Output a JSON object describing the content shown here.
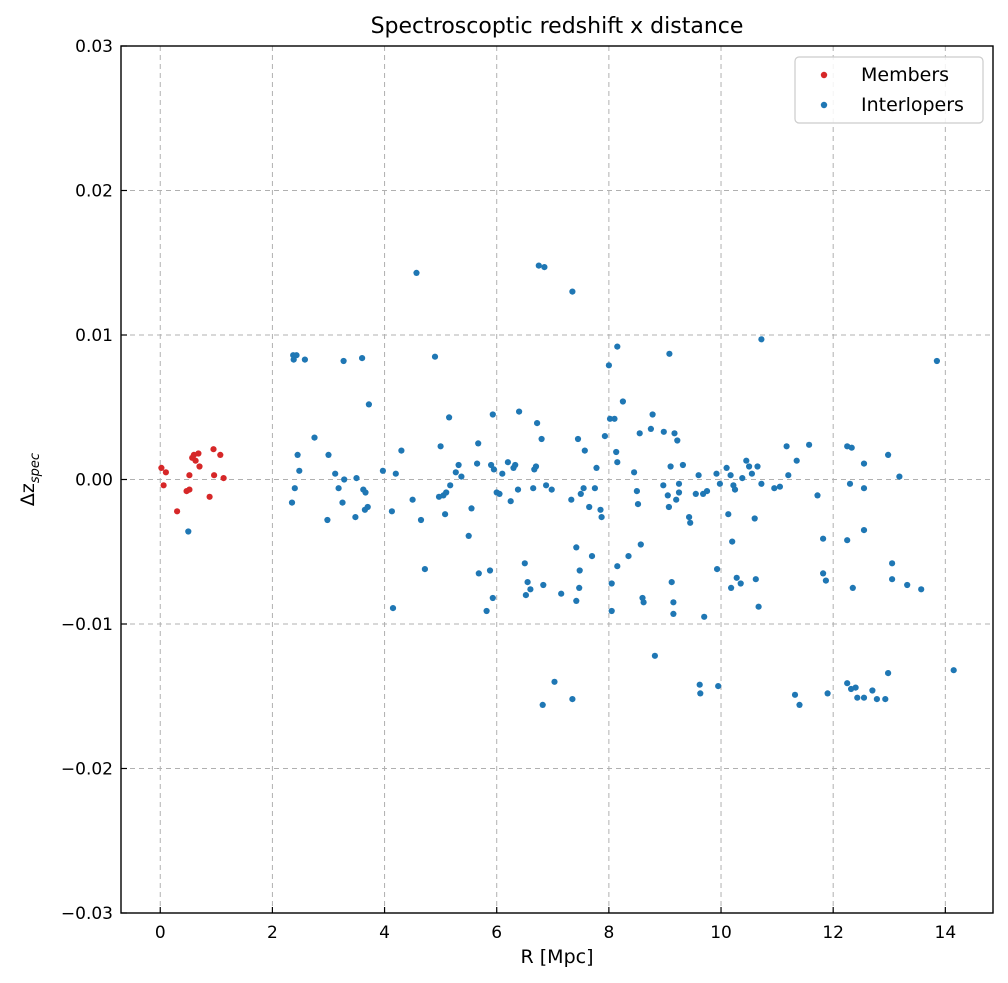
{
  "chart_data": {
    "type": "scatter",
    "title": "Spectroscoptic redshift x distance",
    "xlabel": "R [Mpc]",
    "ylabel": "Δz",
    "ylabel_subscript": "spec",
    "xlim": [
      -0.7,
      14.85
    ],
    "ylim": [
      -0.03,
      0.03
    ],
    "xticks": [
      0,
      2,
      4,
      6,
      8,
      10,
      12,
      14
    ],
    "xtick_labels": [
      "0",
      "2",
      "4",
      "6",
      "8",
      "10",
      "12",
      "14"
    ],
    "yticks": [
      -0.03,
      -0.02,
      -0.01,
      0.0,
      0.01,
      0.02,
      0.03
    ],
    "ytick_labels": [
      "−0.03",
      "−0.02",
      "−0.01",
      "0.00",
      "0.01",
      "0.02",
      "0.03"
    ],
    "grid": true,
    "legend_position": "top-right",
    "series": [
      {
        "name": "Members",
        "color": "#d62728",
        "points": [
          [
            0.02,
            0.0008
          ],
          [
            0.06,
            -0.0004
          ],
          [
            0.1,
            0.0005
          ],
          [
            0.3,
            -0.0022
          ],
          [
            0.47,
            -0.0008
          ],
          [
            0.52,
            -0.0007
          ],
          [
            0.52,
            0.0003
          ],
          [
            0.57,
            0.0015
          ],
          [
            0.6,
            0.0017
          ],
          [
            0.63,
            0.0013
          ],
          [
            0.68,
            0.0018
          ],
          [
            0.7,
            0.0009
          ],
          [
            0.88,
            -0.0012
          ],
          [
            0.95,
            0.0021
          ],
          [
            0.96,
            0.0003
          ],
          [
            1.07,
            0.0017
          ],
          [
            1.13,
            0.0001
          ]
        ]
      },
      {
        "name": "Interlopers",
        "color": "#1f77b4",
        "points": [
          [
            0.5,
            -0.0036
          ],
          [
            2.35,
            -0.0016
          ],
          [
            2.37,
            0.0086
          ],
          [
            2.38,
            0.0083
          ],
          [
            2.4,
            -0.0006
          ],
          [
            2.43,
            0.0086
          ],
          [
            2.45,
            0.0017
          ],
          [
            2.48,
            0.0006
          ],
          [
            2.58,
            0.0083
          ],
          [
            2.75,
            0.0029
          ],
          [
            2.98,
            -0.0028
          ],
          [
            3.0,
            0.0017
          ],
          [
            3.12,
            0.0004
          ],
          [
            3.18,
            -0.0006
          ],
          [
            3.25,
            -0.0016
          ],
          [
            3.27,
            0.0082
          ],
          [
            3.28,
            0.0
          ],
          [
            3.48,
            -0.0026
          ],
          [
            3.5,
            0.0001
          ],
          [
            3.6,
            0.0084
          ],
          [
            3.62,
            -0.0007
          ],
          [
            3.65,
            -0.0021
          ],
          [
            3.66,
            -0.0009
          ],
          [
            3.7,
            -0.0019
          ],
          [
            3.72,
            0.0052
          ],
          [
            3.97,
            0.0006
          ],
          [
            4.13,
            -0.0022
          ],
          [
            4.15,
            -0.0089
          ],
          [
            4.2,
            0.0004
          ],
          [
            4.3,
            0.002
          ],
          [
            4.5,
            -0.0014
          ],
          [
            4.57,
            0.0143
          ],
          [
            4.65,
            -0.0028
          ],
          [
            4.72,
            -0.0062
          ],
          [
            4.9,
            0.0085
          ],
          [
            4.97,
            -0.0012
          ],
          [
            5.0,
            0.0023
          ],
          [
            5.05,
            -0.0011
          ],
          [
            5.08,
            -0.0024
          ],
          [
            5.1,
            -0.0009
          ],
          [
            5.15,
            0.0043
          ],
          [
            5.17,
            -0.0004
          ],
          [
            5.27,
            0.0005
          ],
          [
            5.32,
            0.001
          ],
          [
            5.37,
            0.0002
          ],
          [
            5.5,
            -0.0039
          ],
          [
            5.55,
            -0.002
          ],
          [
            5.65,
            0.0011
          ],
          [
            5.67,
            0.0025
          ],
          [
            5.68,
            -0.0065
          ],
          [
            5.82,
            -0.0091
          ],
          [
            5.88,
            -0.0063
          ],
          [
            5.9,
            0.001
          ],
          [
            5.93,
            0.0045
          ],
          [
            5.93,
            -0.0082
          ],
          [
            5.95,
            0.0007
          ],
          [
            6.0,
            -0.0009
          ],
          [
            6.05,
            -0.001
          ],
          [
            6.1,
            0.0004
          ],
          [
            6.2,
            0.0012
          ],
          [
            6.25,
            -0.0015
          ],
          [
            6.3,
            0.0008
          ],
          [
            6.33,
            0.001
          ],
          [
            6.38,
            -0.0007
          ],
          [
            6.4,
            0.0047
          ],
          [
            6.5,
            -0.0058
          ],
          [
            6.52,
            -0.008
          ],
          [
            6.55,
            -0.0071
          ],
          [
            6.6,
            -0.0076
          ],
          [
            6.65,
            -0.0006
          ],
          [
            6.67,
            0.0007
          ],
          [
            6.7,
            0.0009
          ],
          [
            6.72,
            0.0039
          ],
          [
            6.75,
            0.0148
          ],
          [
            6.8,
            0.0028
          ],
          [
            6.82,
            -0.0156
          ],
          [
            6.83,
            -0.0073
          ],
          [
            6.85,
            0.0147
          ],
          [
            6.88,
            -0.0004
          ],
          [
            6.98,
            -0.0007
          ],
          [
            7.03,
            -0.014
          ],
          [
            7.15,
            -0.0079
          ],
          [
            7.33,
            -0.0014
          ],
          [
            7.35,
            0.013
          ],
          [
            7.35,
            -0.0152
          ],
          [
            7.42,
            -0.0084
          ],
          [
            7.42,
            -0.0047
          ],
          [
            7.45,
            0.0028
          ],
          [
            7.47,
            -0.0075
          ],
          [
            7.48,
            -0.0063
          ],
          [
            7.5,
            -0.001
          ],
          [
            7.55,
            -0.0006
          ],
          [
            7.57,
            0.002
          ],
          [
            7.65,
            -0.0019
          ],
          [
            7.7,
            -0.0053
          ],
          [
            7.75,
            -0.0006
          ],
          [
            7.78,
            0.0008
          ],
          [
            7.85,
            -0.0021
          ],
          [
            7.87,
            -0.0026
          ],
          [
            7.93,
            0.003
          ],
          [
            8.0,
            0.0079
          ],
          [
            8.02,
            0.0042
          ],
          [
            8.05,
            -0.0072
          ],
          [
            8.05,
            -0.0091
          ],
          [
            8.1,
            0.0042
          ],
          [
            8.13,
            0.0019
          ],
          [
            8.15,
            0.0092
          ],
          [
            8.15,
            -0.006
          ],
          [
            8.15,
            0.0012
          ],
          [
            8.25,
            0.0054
          ],
          [
            8.35,
            -0.0053
          ],
          [
            8.45,
            0.0005
          ],
          [
            8.5,
            -0.0008
          ],
          [
            8.52,
            -0.0017
          ],
          [
            8.55,
            0.0032
          ],
          [
            8.57,
            -0.0045
          ],
          [
            8.6,
            -0.0082
          ],
          [
            8.62,
            -0.0085
          ],
          [
            8.75,
            0.0035
          ],
          [
            8.78,
            0.0045
          ],
          [
            8.82,
            -0.0122
          ],
          [
            8.97,
            -0.0004
          ],
          [
            8.98,
            0.0033
          ],
          [
            9.05,
            -0.0011
          ],
          [
            9.07,
            -0.0019
          ],
          [
            9.08,
            0.0087
          ],
          [
            9.1,
            0.0009
          ],
          [
            9.12,
            -0.0071
          ],
          [
            9.15,
            -0.0093
          ],
          [
            9.15,
            -0.0085
          ],
          [
            9.17,
            0.0032
          ],
          [
            9.2,
            -0.0014
          ],
          [
            9.22,
            0.0027
          ],
          [
            9.25,
            -0.0009
          ],
          [
            9.25,
            -0.0003
          ],
          [
            9.32,
            0.001
          ],
          [
            9.43,
            -0.0026
          ],
          [
            9.45,
            -0.003
          ],
          [
            9.55,
            -0.001
          ],
          [
            9.6,
            0.0003
          ],
          [
            9.62,
            -0.0142
          ],
          [
            9.63,
            -0.0148
          ],
          [
            9.68,
            -0.001
          ],
          [
            9.7,
            -0.0095
          ],
          [
            9.75,
            -0.0008
          ],
          [
            9.92,
            0.0004
          ],
          [
            9.93,
            -0.0062
          ],
          [
            9.95,
            -0.0143
          ],
          [
            9.98,
            -0.0003
          ],
          [
            10.1,
            0.0008
          ],
          [
            10.13,
            -0.0024
          ],
          [
            10.17,
            0.0003
          ],
          [
            10.18,
            -0.0075
          ],
          [
            10.2,
            -0.0043
          ],
          [
            10.22,
            -0.0004
          ],
          [
            10.25,
            -0.0007
          ],
          [
            10.28,
            -0.0068
          ],
          [
            10.35,
            -0.0072
          ],
          [
            10.38,
            0.0001
          ],
          [
            10.45,
            0.0013
          ],
          [
            10.5,
            0.0009
          ],
          [
            10.55,
            0.0004
          ],
          [
            10.6,
            -0.0027
          ],
          [
            10.62,
            -0.0069
          ],
          [
            10.65,
            0.0009
          ],
          [
            10.67,
            -0.0088
          ],
          [
            10.72,
            -0.0003
          ],
          [
            10.72,
            0.0097
          ],
          [
            10.95,
            -0.0006
          ],
          [
            11.05,
            -0.0005
          ],
          [
            11.17,
            0.0023
          ],
          [
            11.2,
            0.0003
          ],
          [
            11.32,
            -0.0149
          ],
          [
            11.35,
            0.0013
          ],
          [
            11.4,
            -0.0156
          ],
          [
            11.57,
            0.0024
          ],
          [
            11.72,
            -0.0011
          ],
          [
            11.82,
            -0.0041
          ],
          [
            11.82,
            -0.0065
          ],
          [
            11.87,
            -0.007
          ],
          [
            11.9,
            -0.0148
          ],
          [
            12.25,
            -0.0141
          ],
          [
            12.25,
            0.0023
          ],
          [
            12.25,
            -0.0042
          ],
          [
            12.3,
            -0.0003
          ],
          [
            12.32,
            -0.0145
          ],
          [
            12.33,
            0.0022
          ],
          [
            12.35,
            -0.0075
          ],
          [
            12.4,
            -0.0144
          ],
          [
            12.43,
            -0.0151
          ],
          [
            12.55,
            -0.0151
          ],
          [
            12.55,
            0.0011
          ],
          [
            12.55,
            -0.0006
          ],
          [
            12.55,
            -0.0035
          ],
          [
            12.7,
            -0.0146
          ],
          [
            12.78,
            -0.0152
          ],
          [
            12.93,
            -0.0152
          ],
          [
            12.98,
            -0.0134
          ],
          [
            12.98,
            0.0017
          ],
          [
            13.05,
            -0.0058
          ],
          [
            13.05,
            -0.0069
          ],
          [
            13.18,
            0.0002
          ],
          [
            13.32,
            -0.0073
          ],
          [
            13.57,
            -0.0076
          ],
          [
            13.85,
            0.0082
          ],
          [
            14.15,
            -0.0132
          ]
        ]
      }
    ]
  }
}
